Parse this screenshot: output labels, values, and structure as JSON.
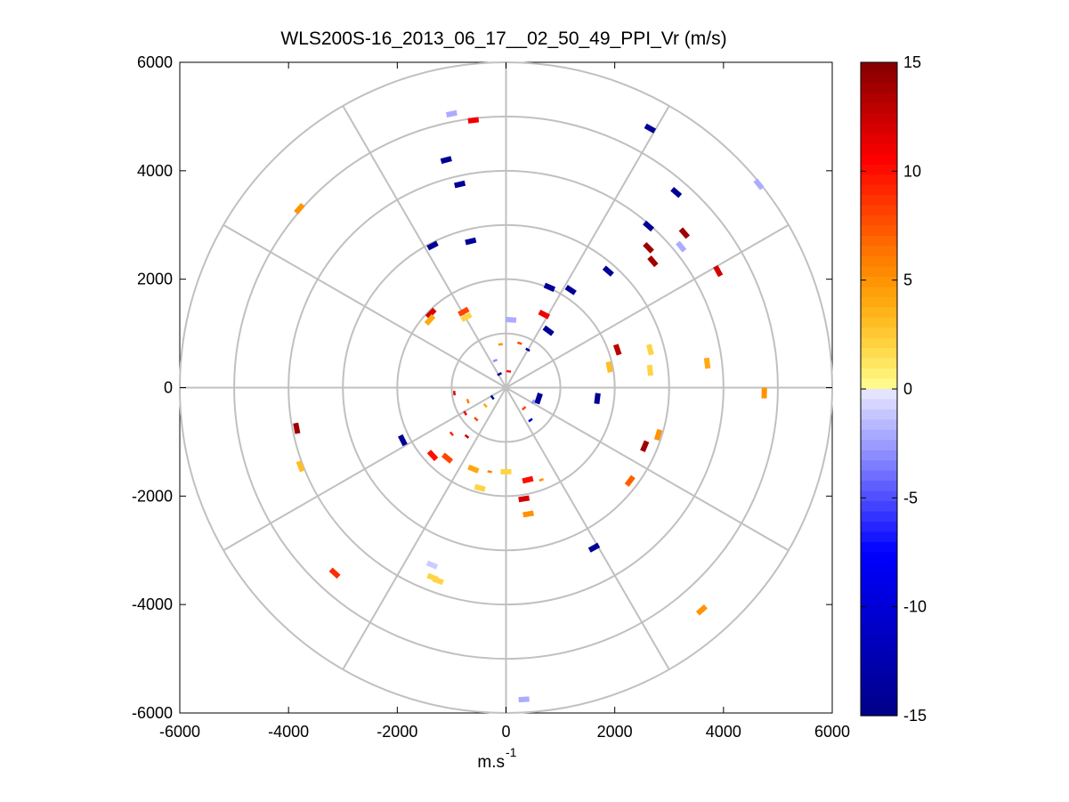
{
  "chart_data": {
    "type": "scatter",
    "title": "WLS200S-16_2013_06_17__02_50_49_PPI_Vr (m/s)",
    "xlabel": "m.s",
    "xlabel_superscript": "-1",
    "ylabel": "",
    "xlim": [
      -6000,
      6000
    ],
    "ylim": [
      -6000,
      6000
    ],
    "x_ticks": [
      "-6000",
      "-4000",
      "-2000",
      "0",
      "2000",
      "4000",
      "6000"
    ],
    "y_ticks": [
      "6000",
      "4000",
      "2000",
      "0",
      "-2000",
      "-4000",
      "-6000"
    ],
    "polar_grid": {
      "ring_radii": [
        1000,
        2000,
        3000,
        4000,
        5000,
        6000
      ],
      "spoke_angles_deg": [
        0,
        30,
        60,
        90,
        120,
        150,
        180,
        210,
        240,
        270,
        300,
        330
      ],
      "color": "#c0c0c0"
    },
    "colorbar": {
      "range": [
        -15,
        15
      ],
      "tick_labels": [
        "15",
        "10",
        "5",
        "0",
        "-5",
        "-10",
        "-15"
      ],
      "colormap": "blue-white-yellow-red"
    },
    "points": [
      {
        "x": -1000,
        "y": 5050,
        "v": -2
      },
      {
        "x": -600,
        "y": 4930,
        "v": 11
      },
      {
        "x": 2650,
        "y": 4780,
        "v": -14
      },
      {
        "x": -1100,
        "y": 4200,
        "v": -14
      },
      {
        "x": -850,
        "y": 3750,
        "v": -14
      },
      {
        "x": 3130,
        "y": 3600,
        "v": -14
      },
      {
        "x": 4650,
        "y": 3750,
        "v": -2
      },
      {
        "x": -3800,
        "y": 3300,
        "v": 5
      },
      {
        "x": 2620,
        "y": 2980,
        "v": -14
      },
      {
        "x": 3280,
        "y": 2850,
        "v": 14
      },
      {
        "x": 2620,
        "y": 2580,
        "v": 14
      },
      {
        "x": 3220,
        "y": 2600,
        "v": -2
      },
      {
        "x": 2700,
        "y": 2330,
        "v": 14
      },
      {
        "x": -650,
        "y": 2700,
        "v": -14
      },
      {
        "x": -1350,
        "y": 2620,
        "v": -14
      },
      {
        "x": 1880,
        "y": 2150,
        "v": -14
      },
      {
        "x": 3900,
        "y": 2150,
        "v": 12
      },
      {
        "x": 800,
        "y": 1850,
        "v": -14
      },
      {
        "x": 1190,
        "y": 1800,
        "v": -14
      },
      {
        "x": -1380,
        "y": 1370,
        "v": 12
      },
      {
        "x": -780,
        "y": 1400,
        "v": 8
      },
      {
        "x": -730,
        "y": 1300,
        "v": 2
      },
      {
        "x": -1400,
        "y": 1250,
        "v": 4
      },
      {
        "x": 700,
        "y": 1350,
        "v": 11
      },
      {
        "x": 90,
        "y": 1250,
        "v": -2
      },
      {
        "x": 780,
        "y": 1050,
        "v": -14
      },
      {
        "x": 2050,
        "y": 700,
        "v": 13
      },
      {
        "x": 2650,
        "y": 700,
        "v": 2
      },
      {
        "x": 3700,
        "y": 450,
        "v": 4
      },
      {
        "x": 2650,
        "y": 320,
        "v": 2
      },
      {
        "x": 1900,
        "y": 380,
        "v": 3
      },
      {
        "x": 4750,
        "y": -100,
        "v": 5
      },
      {
        "x": 1680,
        "y": -200,
        "v": -14
      },
      {
        "x": 600,
        "y": -200,
        "v": -14
      },
      {
        "x": 2550,
        "y": -1080,
        "v": 14
      },
      {
        "x": 2800,
        "y": -870,
        "v": 5
      },
      {
        "x": -3850,
        "y": -750,
        "v": 14
      },
      {
        "x": -3780,
        "y": -1450,
        "v": 3
      },
      {
        "x": -1900,
        "y": -970,
        "v": -14
      },
      {
        "x": -1350,
        "y": -1250,
        "v": 10
      },
      {
        "x": -1080,
        "y": -1300,
        "v": 8
      },
      {
        "x": -600,
        "y": -1500,
        "v": 4
      },
      {
        "x": 0,
        "y": -1550,
        "v": 2
      },
      {
        "x": 400,
        "y": -1700,
        "v": 10
      },
      {
        "x": 2280,
        "y": -1720,
        "v": 7
      },
      {
        "x": -480,
        "y": -1850,
        "v": 2
      },
      {
        "x": 330,
        "y": -2050,
        "v": 12
      },
      {
        "x": 410,
        "y": -2330,
        "v": 5
      },
      {
        "x": 1620,
        "y": -2950,
        "v": -14
      },
      {
        "x": -1360,
        "y": -3270,
        "v": -1
      },
      {
        "x": -1350,
        "y": -3500,
        "v": 2
      },
      {
        "x": -1250,
        "y": -3560,
        "v": 2
      },
      {
        "x": -3150,
        "y": -3420,
        "v": 9
      },
      {
        "x": 3600,
        "y": -4100,
        "v": 5
      },
      {
        "x": 330,
        "y": -5750,
        "v": -2
      }
    ],
    "near_center_points": [
      {
        "x": -100,
        "y": 800,
        "v": 5
      },
      {
        "x": 250,
        "y": 820,
        "v": 8
      },
      {
        "x": 400,
        "y": 700,
        "v": -14
      },
      {
        "x": -200,
        "y": 500,
        "v": -3
      },
      {
        "x": -120,
        "y": 250,
        "v": -14
      },
      {
        "x": 50,
        "y": 300,
        "v": 10
      },
      {
        "x": -950,
        "y": -100,
        "v": 12
      },
      {
        "x": -700,
        "y": -250,
        "v": 6
      },
      {
        "x": -750,
        "y": -470,
        "v": 11
      },
      {
        "x": -550,
        "y": -580,
        "v": 8
      },
      {
        "x": -380,
        "y": -330,
        "v": 4
      },
      {
        "x": -250,
        "y": -180,
        "v": -14
      },
      {
        "x": 330,
        "y": -380,
        "v": 8
      },
      {
        "x": 450,
        "y": -600,
        "v": -10
      },
      {
        "x": 500,
        "y": -260,
        "v": -3
      },
      {
        "x": -1000,
        "y": -850,
        "v": 9
      },
      {
        "x": -720,
        "y": -900,
        "v": 12
      },
      {
        "x": -300,
        "y": -1550,
        "v": 6
      },
      {
        "x": 650,
        "y": -1700,
        "v": 5
      }
    ]
  }
}
